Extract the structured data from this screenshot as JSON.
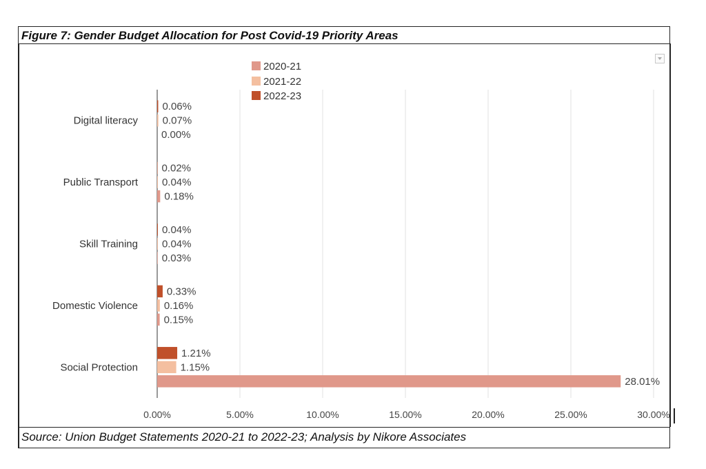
{
  "figure": {
    "title": "Figure 7: Gender Budget Allocation for Post Covid-19 Priority Areas",
    "source": "Source: Union Budget Statements 2020-21 to 2022-23; Analysis by Nikore Associates"
  },
  "chart_data": {
    "type": "bar",
    "orientation": "horizontal",
    "title": "",
    "xlabel": "",
    "ylabel": "",
    "categories": [
      "Digital literacy",
      "Public Transport",
      "Skill Training",
      "Domestic Violence",
      "Social Protection"
    ],
    "series": [
      {
        "name": "2020-21",
        "color": "#e0988a",
        "values": [
          0.0,
          0.18,
          0.03,
          0.15,
          28.01
        ],
        "labels": [
          "0.00%",
          "0.18%",
          "0.03%",
          "0.15%",
          "28.01%"
        ]
      },
      {
        "name": "2021-22",
        "color": "#f4bfa0",
        "values": [
          0.07,
          0.04,
          0.04,
          0.16,
          1.15
        ],
        "labels": [
          "0.07%",
          "0.04%",
          "0.04%",
          "0.16%",
          "1.15%"
        ]
      },
      {
        "name": "2022-23",
        "color": "#c0502a",
        "values": [
          0.06,
          0.02,
          0.04,
          0.33,
          1.21
        ],
        "labels": [
          "0.06%",
          "0.02%",
          "0.04%",
          "0.33%",
          "1.21%"
        ]
      }
    ],
    "xlim": [
      0,
      30
    ],
    "xticks": [
      0,
      5,
      10,
      15,
      20,
      25,
      30
    ],
    "xtick_labels": [
      "0.00%",
      "5.00%",
      "10.00%",
      "15.00%",
      "20.00%",
      "25.00%",
      "30.00%"
    ],
    "grid": true,
    "legend": "top-left"
  }
}
